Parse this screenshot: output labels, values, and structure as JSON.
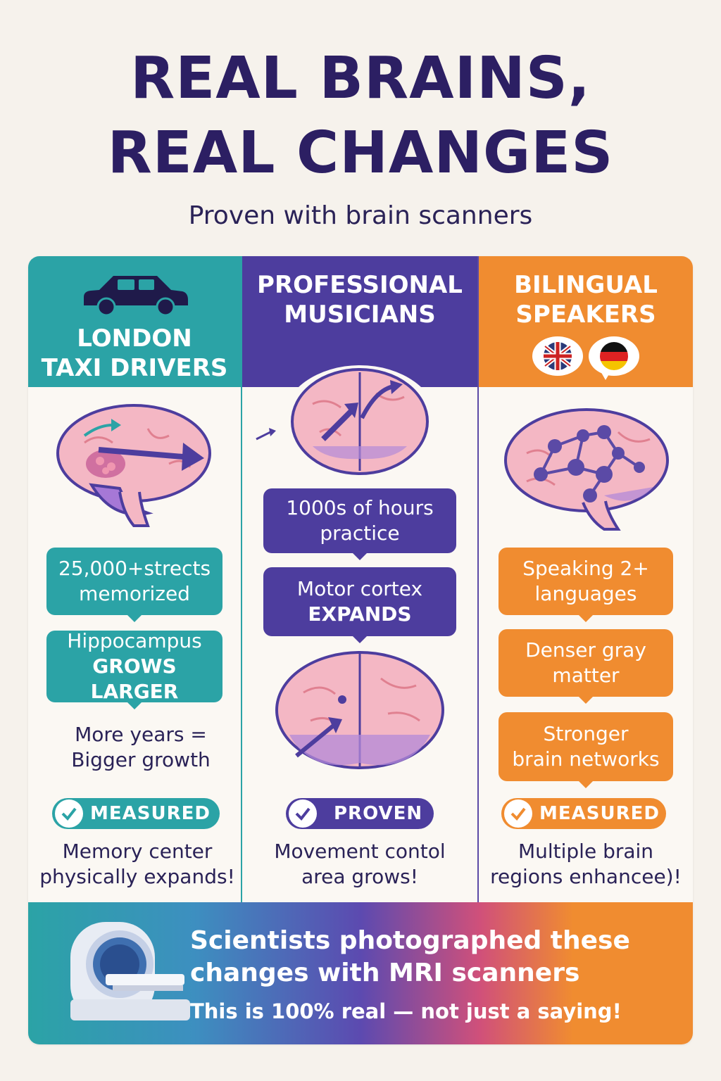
{
  "header": {
    "title_line1": "REAL BRAINS,",
    "title_line2": "REAL CHANGES",
    "subtitle": "Proven with brain scanners"
  },
  "columns": [
    {
      "heading_line1": "LONDON",
      "heading_line2": "TAXI DRIVERS",
      "icon": "taxi-icon",
      "color": "#2ba3a6",
      "box1_line1": "25,000+strects",
      "box1_line2": "memorized",
      "box2_line1": "Hippocampus",
      "box2_line2": "GROWS LARGER",
      "note_line1": "More years =",
      "note_line2": "Bigger growth",
      "badge": "MEASURED",
      "caption_line1": "Memory center",
      "caption_line2": "physically expands!"
    },
    {
      "heading_line1": "PROFESSIONAL",
      "heading_line2": "MUSICIANS",
      "icon": "brain-arrows-icon",
      "color": "#4d3d9e",
      "box1_line1": "1000s of hours",
      "box1_line2": "practice",
      "box2_line1": "Motor cortex",
      "box2_line2": "EXPANDS",
      "badge": "PROVEN",
      "caption_line1": "Movement contol",
      "caption_line2": "area grows!"
    },
    {
      "heading_line1": "BILINGUAL",
      "heading_line2": "SPEAKERS",
      "icon": "flags-icon",
      "color": "#f08c30",
      "box1_line1": "Speaking 2+",
      "box1_line2": "languages",
      "box2_line1": "Denser gray",
      "box2_line2": "matter",
      "box3_line1": "Stronger",
      "box3_line2": "brain networks",
      "badge": "MEASURED",
      "caption_line1": "Multiple brain",
      "caption_line2": "regions enhancee)!"
    }
  ],
  "banner": {
    "icon": "mri-scanner-icon",
    "line1": "Scientists photographed these",
    "line2": "changes with MRI scanners",
    "line3": "This is 100% real — not just a saying!"
  }
}
